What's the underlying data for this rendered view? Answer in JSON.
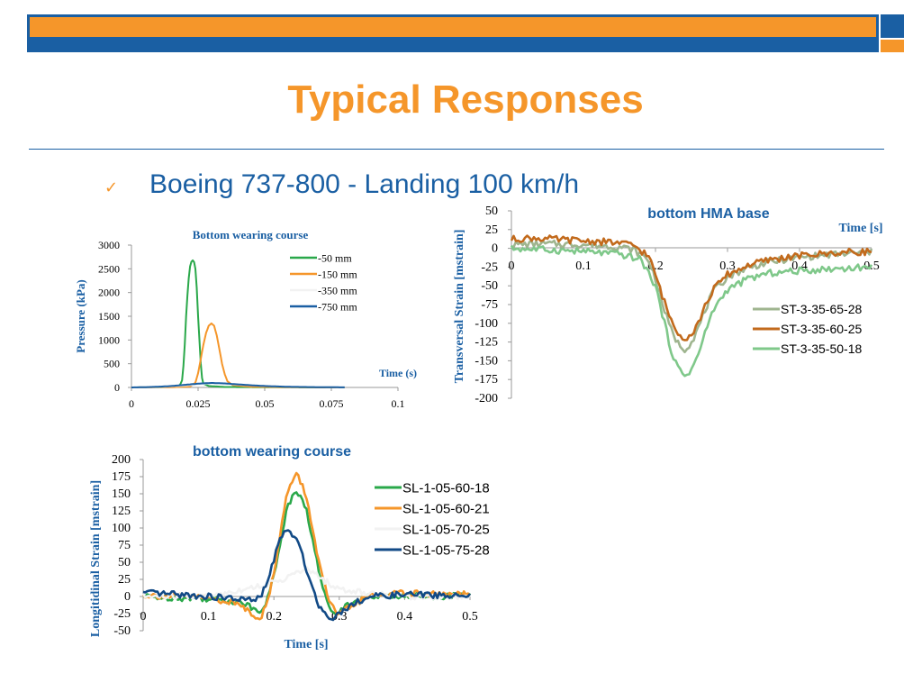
{
  "slide": {
    "title": "Typical Responses",
    "bullet": "Boeing 737-800 - Landing 100 km/h"
  },
  "colors": {
    "brand_blue": "#1a5fa3",
    "brand_orange": "#f5962a",
    "title_orange": "#f5962a"
  },
  "chart_data": [
    {
      "id": "pressure",
      "type": "line",
      "title": "Bottom wearing course",
      "xlabel": "Time (s)",
      "ylabel": "Pressure (kPa)",
      "xlim": [
        0,
        0.1
      ],
      "ylim": [
        0,
        3000
      ],
      "x_ticks": [
        "0",
        "0.025",
        "0.05",
        "0.075",
        "0.1"
      ],
      "y_ticks": [
        "0",
        "500",
        "1000",
        "1500",
        "2000",
        "2500",
        "3000"
      ],
      "grid": false,
      "legend_position": "top-right",
      "series": [
        {
          "name": "-50 mm",
          "color": "#2aa84a",
          "points": [
            [
              0,
              0
            ],
            [
              0.012,
              5
            ],
            [
              0.018,
              30
            ],
            [
              0.019,
              150
            ],
            [
              0.0195,
              450
            ],
            [
              0.02,
              900
            ],
            [
              0.0205,
              1500
            ],
            [
              0.021,
              1950
            ],
            [
              0.0215,
              2300
            ],
            [
              0.022,
              2550
            ],
            [
              0.0225,
              2650
            ],
            [
              0.023,
              2680
            ],
            [
              0.0235,
              2640
            ],
            [
              0.024,
              2500
            ],
            [
              0.0245,
              2100
            ],
            [
              0.025,
              1500
            ],
            [
              0.0255,
              1000
            ],
            [
              0.026,
              500
            ],
            [
              0.0265,
              200
            ],
            [
              0.027,
              80
            ],
            [
              0.029,
              30
            ],
            [
              0.035,
              10
            ],
            [
              0.05,
              5
            ],
            [
              0.08,
              0
            ]
          ]
        },
        {
          "name": "-150 mm",
          "color": "#f5962a",
          "points": [
            [
              0,
              0
            ],
            [
              0.015,
              5
            ],
            [
              0.022,
              20
            ],
            [
              0.024,
              100
            ],
            [
              0.025,
              300
            ],
            [
              0.026,
              600
            ],
            [
              0.027,
              900
            ],
            [
              0.028,
              1150
            ],
            [
              0.029,
              1300
            ],
            [
              0.03,
              1350
            ],
            [
              0.031,
              1300
            ],
            [
              0.032,
              1100
            ],
            [
              0.033,
              800
            ],
            [
              0.034,
              500
            ],
            [
              0.035,
              280
            ],
            [
              0.036,
              130
            ],
            [
              0.038,
              50
            ],
            [
              0.045,
              15
            ],
            [
              0.06,
              5
            ],
            [
              0.08,
              0
            ]
          ]
        },
        {
          "name": "-350 mm",
          "color": "#f2f2f2",
          "points": [
            [
              0,
              0
            ],
            [
              0.01,
              10
            ],
            [
              0.02,
              40
            ],
            [
              0.03,
              90
            ],
            [
              0.04,
              60
            ],
            [
              0.05,
              30
            ],
            [
              0.06,
              15
            ],
            [
              0.08,
              5
            ]
          ]
        },
        {
          "name": "-750 mm",
          "color": "#1a5fa3",
          "points": [
            [
              0,
              0
            ],
            [
              0.005,
              5
            ],
            [
              0.01,
              15
            ],
            [
              0.015,
              30
            ],
            [
              0.02,
              55
            ],
            [
              0.025,
              80
            ],
            [
              0.03,
              95
            ],
            [
              0.035,
              85
            ],
            [
              0.04,
              65
            ],
            [
              0.045,
              45
            ],
            [
              0.05,
              30
            ],
            [
              0.055,
              20
            ],
            [
              0.06,
              12
            ],
            [
              0.07,
              6
            ],
            [
              0.08,
              2
            ]
          ]
        }
      ]
    },
    {
      "id": "transversal",
      "type": "line",
      "title": "bottom HMA base",
      "xlabel": "Time [s]",
      "ylabel": "Transversal Strain [mstrain]",
      "xlim": [
        0,
        0.5
      ],
      "ylim": [
        -200,
        50
      ],
      "x_ticks": [
        "0",
        "0.1",
        "0.2",
        "0.3",
        "0.4",
        "0.5"
      ],
      "y_ticks": [
        "-200",
        "-175",
        "-150",
        "-125",
        "-100",
        "-75",
        "-50",
        "-25",
        "0",
        "25",
        "50"
      ],
      "grid": false,
      "legend_position": "right",
      "series": [
        {
          "name": "ST-3-35-65-28",
          "color": "#9fb58f",
          "points": [
            [
              0,
              5
            ],
            [
              0.05,
              6
            ],
            [
              0.1,
              5
            ],
            [
              0.15,
              2
            ],
            [
              0.17,
              -2
            ],
            [
              0.19,
              -15
            ],
            [
              0.2,
              -40
            ],
            [
              0.21,
              -75
            ],
            [
              0.22,
              -105
            ],
            [
              0.23,
              -125
            ],
            [
              0.24,
              -135
            ],
            [
              0.25,
              -125
            ],
            [
              0.26,
              -105
            ],
            [
              0.27,
              -80
            ],
            [
              0.28,
              -58
            ],
            [
              0.3,
              -38
            ],
            [
              0.33,
              -25
            ],
            [
              0.36,
              -18
            ],
            [
              0.4,
              -12
            ],
            [
              0.45,
              -8
            ],
            [
              0.5,
              -5
            ]
          ]
        },
        {
          "name": "ST-3-35-60-25",
          "color": "#c26a1c",
          "points": [
            [
              0,
              12
            ],
            [
              0.03,
              14
            ],
            [
              0.06,
              12
            ],
            [
              0.1,
              10
            ],
            [
              0.14,
              8
            ],
            [
              0.17,
              4
            ],
            [
              0.19,
              -10
            ],
            [
              0.2,
              -35
            ],
            [
              0.21,
              -65
            ],
            [
              0.22,
              -92
            ],
            [
              0.23,
              -110
            ],
            [
              0.24,
              -120
            ],
            [
              0.25,
              -115
            ],
            [
              0.26,
              -98
            ],
            [
              0.27,
              -75
            ],
            [
              0.28,
              -55
            ],
            [
              0.3,
              -35
            ],
            [
              0.33,
              -22
            ],
            [
              0.36,
              -15
            ],
            [
              0.4,
              -10
            ],
            [
              0.45,
              -6
            ],
            [
              0.5,
              -4
            ]
          ]
        },
        {
          "name": "ST-3-35-50-18",
          "color": "#7fc88a",
          "points": [
            [
              0,
              0
            ],
            [
              0.05,
              -2
            ],
            [
              0.1,
              -4
            ],
            [
              0.15,
              -8
            ],
            [
              0.18,
              -15
            ],
            [
              0.2,
              -50
            ],
            [
              0.21,
              -90
            ],
            [
              0.22,
              -130
            ],
            [
              0.23,
              -158
            ],
            [
              0.24,
              -170
            ],
            [
              0.25,
              -162
            ],
            [
              0.26,
              -140
            ],
            [
              0.27,
              -110
            ],
            [
              0.28,
              -82
            ],
            [
              0.3,
              -55
            ],
            [
              0.33,
              -40
            ],
            [
              0.36,
              -33
            ],
            [
              0.4,
              -30
            ],
            [
              0.45,
              -27
            ],
            [
              0.5,
              -25
            ]
          ]
        }
      ]
    },
    {
      "id": "longitudinal",
      "type": "line",
      "title": "bottom wearing course",
      "xlabel": "Time [s]",
      "ylabel": "Longitidinal Strain [mstrain]",
      "xlim": [
        0,
        0.5
      ],
      "ylim": [
        -50,
        200
      ],
      "x_ticks": [
        "0",
        "0.1",
        "0.2",
        "0.3",
        "0.4",
        "0.5"
      ],
      "y_ticks": [
        "-50",
        "-25",
        "0",
        "25",
        "50",
        "75",
        "100",
        "125",
        "150",
        "175",
        "200"
      ],
      "grid": false,
      "legend_position": "right",
      "series": [
        {
          "name": "SL-1-05-60-18",
          "color": "#2aa84a",
          "points": [
            [
              0,
              0
            ],
            [
              0.05,
              -2
            ],
            [
              0.1,
              -3
            ],
            [
              0.15,
              -8
            ],
            [
              0.17,
              -18
            ],
            [
              0.18,
              -20
            ],
            [
              0.19,
              -5
            ],
            [
              0.2,
              30
            ],
            [
              0.21,
              80
            ],
            [
              0.22,
              130
            ],
            [
              0.23,
              148
            ],
            [
              0.24,
              150
            ],
            [
              0.25,
              125
            ],
            [
              0.26,
              80
            ],
            [
              0.27,
              30
            ],
            [
              0.28,
              -5
            ],
            [
              0.29,
              -22
            ],
            [
              0.3,
              -20
            ],
            [
              0.32,
              -8
            ],
            [
              0.35,
              0
            ],
            [
              0.4,
              2
            ],
            [
              0.45,
              0
            ],
            [
              0.5,
              2
            ]
          ]
        },
        {
          "name": "SL-1-05-60-21",
          "color": "#f5962a",
          "points": [
            [
              0,
              2
            ],
            [
              0.05,
              0
            ],
            [
              0.1,
              -2
            ],
            [
              0.15,
              -12
            ],
            [
              0.17,
              -28
            ],
            [
              0.18,
              -30
            ],
            [
              0.19,
              -10
            ],
            [
              0.2,
              35
            ],
            [
              0.21,
              95
            ],
            [
              0.22,
              150
            ],
            [
              0.23,
              172
            ],
            [
              0.235,
              178
            ],
            [
              0.245,
              160
            ],
            [
              0.255,
              120
            ],
            [
              0.265,
              70
            ],
            [
              0.275,
              25
            ],
            [
              0.285,
              -10
            ],
            [
              0.3,
              -28
            ],
            [
              0.32,
              -12
            ],
            [
              0.35,
              2
            ],
            [
              0.4,
              5
            ],
            [
              0.45,
              3
            ],
            [
              0.5,
              3
            ]
          ]
        },
        {
          "name": "SL-1-05-70-25",
          "color": "#f2f2f2",
          "points": [
            [
              0,
              0
            ],
            [
              0.1,
              0
            ],
            [
              0.2,
              20
            ],
            [
              0.25,
              40
            ],
            [
              0.3,
              10
            ],
            [
              0.4,
              0
            ],
            [
              0.5,
              0
            ]
          ]
        },
        {
          "name": "SL-1-05-75-28",
          "color": "#124a86",
          "points": [
            [
              0,
              5
            ],
            [
              0.05,
              3
            ],
            [
              0.1,
              0
            ],
            [
              0.15,
              -4
            ],
            [
              0.17,
              -6
            ],
            [
              0.18,
              0
            ],
            [
              0.19,
              20
            ],
            [
              0.2,
              55
            ],
            [
              0.21,
              85
            ],
            [
              0.22,
              97
            ],
            [
              0.23,
              90
            ],
            [
              0.24,
              70
            ],
            [
              0.25,
              40
            ],
            [
              0.26,
              10
            ],
            [
              0.27,
              -15
            ],
            [
              0.28,
              -28
            ],
            [
              0.29,
              -30
            ],
            [
              0.3,
              -25
            ],
            [
              0.32,
              -10
            ],
            [
              0.35,
              0
            ],
            [
              0.4,
              3
            ],
            [
              0.45,
              2
            ],
            [
              0.5,
              0
            ]
          ]
        }
      ]
    }
  ]
}
